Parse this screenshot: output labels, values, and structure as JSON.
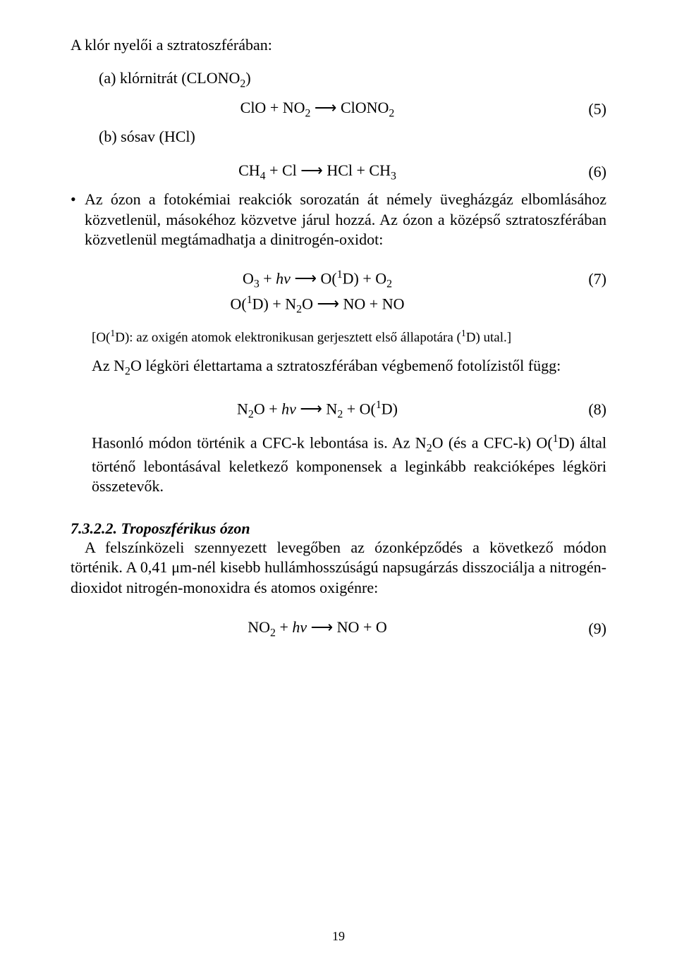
{
  "p1": "A klór nyelői a sztratoszférában:",
  "list_a_html": "(a) klórnitrát (CLONO<sub>2</sub>)",
  "eq5_html": "ClO + NO<sub>2</sub> <span class='arrow'>⟶</span> ClONO<sub>2</sub>",
  "eq5_num": "(5)",
  "list_b": "(b) sósav (HCl)",
  "eq6_html": "CH<sub>4</sub> + Cl <span class='arrow'>⟶</span> HCl + CH<sub>3</sub>",
  "eq6_num": "(6)",
  "bullet1_html": "Az ózon a fotokémiai reakciók sorozatán át némely üvegházgáz elbomlásához közvetlenül, másokéhoz közvetve járul hozzá. Az ózon a középső sztratoszférában közvetlenül megtámadhatja a dinitrogén-oxidot:",
  "eq7a_html": "O<sub>3</sub> + <i>hv</i> <span class='arrow'>⟶</span> O(<sup>1</sup>D) + O<sub>2</sub>",
  "eq7_num": "(7)",
  "eq7b_html": "O(<sup>1</sup>D) + N<sub>2</sub>O <span class='arrow'>⟶</span> NO + NO",
  "note_html": "[O(<sup>1</sup>D): az oxigén atomok elektronikusan gerjesztett első állapotára (<sup>1</sup>D) utal.]",
  "p2_html": "Az N<sub>2</sub>O légköri élettartama a sztratoszférában végbemenő fotolízistől függ:",
  "eq8_html": "N<sub>2</sub>O + <i>hv</i> <span class='arrow'>⟶</span> N<sub>2</sub> + O(<sup>1</sup>D)",
  "eq8_num": "(8)",
  "p3_html": "Hasonló módon történik a CFC-k lebontása is. Az N<sub>2</sub>O (és a CFC-k) O(<sup>1</sup>D) által történő lebontásával keletkező komponensek a leginkább reakcióképes légköri összetevők.",
  "sec_title": "7.3.2.2. Troposzférikus ózon",
  "p4": "A felszínközeli szennyezett levegőben az ózonképződés a következő módon történik. A 0,41 μm-nél kisebb hullámhosszúságú napsugárzás disszociálja a nitrogén-dioxidot nitrogén-monoxidra és atomos oxigénre:",
  "eq9_html": "NO<sub>2</sub> + <i>hv</i> <span class='arrow'>⟶</span> NO + O",
  "eq9_num": "(9)",
  "page_number": "19"
}
